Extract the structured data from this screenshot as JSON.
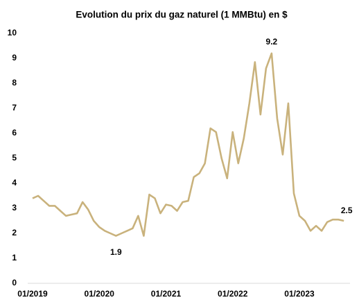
{
  "chart_data": {
    "type": "line",
    "title": "Evolution du prix du gaz naturel (1 MMBtu) en $",
    "categories": [
      "01/2019",
      null,
      null,
      null,
      null,
      null,
      null,
      null,
      null,
      null,
      null,
      null,
      "01/2020",
      null,
      null,
      null,
      null,
      null,
      null,
      null,
      null,
      null,
      null,
      null,
      "01/2021",
      null,
      null,
      null,
      null,
      null,
      null,
      null,
      null,
      null,
      null,
      null,
      "01/2022",
      null,
      null,
      null,
      null,
      null,
      null,
      null,
      null,
      null,
      null,
      null,
      "01/2023",
      null,
      null,
      null,
      null,
      null,
      null,
      null,
      null
    ],
    "values": [
      3.4,
      3.5,
      3.3,
      3.1,
      3.1,
      2.9,
      2.7,
      2.75,
      2.8,
      3.25,
      2.95,
      2.5,
      2.25,
      2.1,
      2.0,
      1.9,
      2.0,
      2.1,
      2.2,
      2.7,
      1.9,
      3.55,
      3.4,
      2.8,
      3.15,
      3.1,
      2.9,
      3.25,
      3.3,
      4.25,
      4.4,
      4.8,
      6.2,
      6.05,
      5.0,
      4.2,
      6.05,
      4.8,
      5.8,
      7.2,
      8.85,
      6.75,
      8.6,
      9.2,
      6.6,
      5.15,
      7.2,
      3.6,
      2.7,
      2.5,
      2.1,
      2.3,
      2.1,
      2.45,
      2.55,
      2.55,
      2.5
    ],
    "value_labels": [
      null,
      null,
      null,
      null,
      null,
      null,
      null,
      null,
      null,
      null,
      null,
      null,
      null,
      null,
      null,
      "1.9",
      null,
      null,
      null,
      null,
      null,
      null,
      null,
      null,
      null,
      null,
      null,
      null,
      null,
      null,
      null,
      null,
      null,
      null,
      null,
      null,
      null,
      null,
      null,
      null,
      null,
      null,
      null,
      "9.2",
      null,
      null,
      null,
      null,
      null,
      null,
      null,
      null,
      null,
      null,
      null,
      null,
      "2.5"
    ],
    "color": "#c9b27c",
    "ylim": [
      0,
      10
    ],
    "yticks": [
      0,
      1,
      2,
      3,
      4,
      5,
      6,
      7,
      8,
      9,
      10
    ],
    "grid": false
  }
}
